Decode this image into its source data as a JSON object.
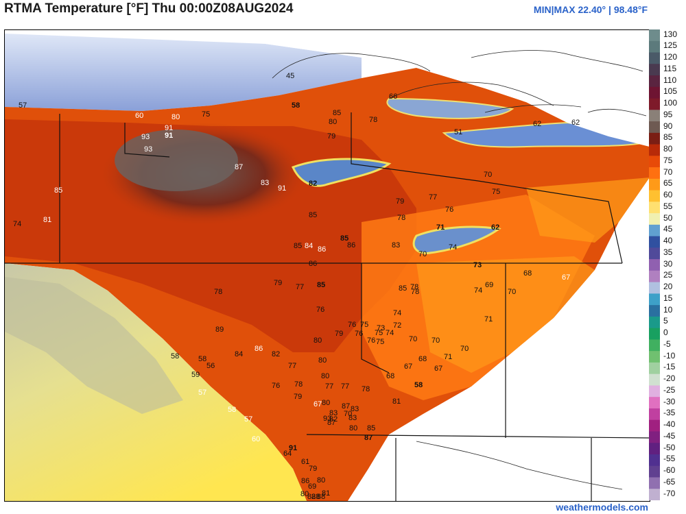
{
  "header": {
    "title": "RTMA Temperature [°F]  Thu 00:00Z08AUG2024",
    "minmax": "MIN|MAX 22.40° | 98.48°F"
  },
  "credit": "weathermodels.com",
  "colorbar": {
    "labels": [
      "130",
      "125",
      "120",
      "115",
      "110",
      "105",
      "100",
      "95",
      "90",
      "85",
      "80",
      "75",
      "70",
      "65",
      "60",
      "55",
      "50",
      "45",
      "40",
      "35",
      "30",
      "25",
      "20",
      "15",
      "10",
      "5",
      "0",
      "-5",
      "-10",
      "-15",
      "-20",
      "-25",
      "-30",
      "-35",
      "-40",
      "-45",
      "-50",
      "-55",
      "-60",
      "-65",
      "-70"
    ],
    "colors": [
      "#6e8c8c",
      "#5c7a7c",
      "#4a5a68",
      "#4a3a50",
      "#5a2440",
      "#6e1432",
      "#7e1a2a",
      "#8a8078",
      "#6e5a52",
      "#7a1e14",
      "#b82a08",
      "#e84a08",
      "#ff7010",
      "#ff9a18",
      "#ffc030",
      "#ffe070",
      "#f0f0b0",
      "#60a0d0",
      "#3050a0",
      "#504a9a",
      "#9060b0",
      "#b080c0",
      "#b0c0e0",
      "#3ea0c8",
      "#2a70a0",
      "#1a9a8a",
      "#18a060",
      "#40b060",
      "#70c070",
      "#a0d0a0",
      "#d0e0d0",
      "#e0b0e0",
      "#e070c0",
      "#c040a0",
      "#a02080",
      "#802080",
      "#602080",
      "#503090",
      "#604090",
      "#9070b0",
      "#c0b0d0"
    ]
  },
  "map": {
    "region": "Western Canada",
    "temperature_labels": [
      {
        "v": "45"
      },
      {
        "v": "57"
      },
      {
        "v": "66"
      },
      {
        "v": "51"
      },
      {
        "v": "62"
      },
      {
        "v": "62"
      },
      {
        "v": "60"
      },
      {
        "v": "80"
      },
      {
        "v": "75"
      },
      {
        "v": "58"
      },
      {
        "v": "85"
      },
      {
        "v": "78"
      },
      {
        "v": "80"
      },
      {
        "v": "79"
      },
      {
        "v": "91"
      },
      {
        "v": "91"
      },
      {
        "v": "93"
      },
      {
        "v": "93"
      },
      {
        "v": "87"
      },
      {
        "v": "83"
      },
      {
        "v": "91"
      },
      {
        "v": "82"
      },
      {
        "v": "70"
      },
      {
        "v": "75"
      },
      {
        "v": "79"
      },
      {
        "v": "77"
      },
      {
        "v": "76"
      },
      {
        "v": "78"
      },
      {
        "v": "71"
      },
      {
        "v": "62"
      },
      {
        "v": "74"
      },
      {
        "v": "70"
      },
      {
        "v": "85"
      },
      {
        "v": "74"
      },
      {
        "v": "81"
      },
      {
        "v": "85"
      },
      {
        "v": "85"
      },
      {
        "v": "86"
      },
      {
        "v": "83"
      },
      {
        "v": "85"
      },
      {
        "v": "84"
      },
      {
        "v": "86"
      },
      {
        "v": "86"
      },
      {
        "v": "73"
      },
      {
        "v": "68"
      },
      {
        "v": "67"
      },
      {
        "v": "69"
      },
      {
        "v": "74"
      },
      {
        "v": "70"
      },
      {
        "v": "85"
      },
      {
        "v": "78"
      },
      {
        "v": "79"
      },
      {
        "v": "77"
      },
      {
        "v": "85"
      },
      {
        "v": "78"
      },
      {
        "v": "78"
      },
      {
        "v": "76"
      },
      {
        "v": "74"
      },
      {
        "v": "71"
      },
      {
        "v": "76"
      },
      {
        "v": "75"
      },
      {
        "v": "73"
      },
      {
        "v": "72"
      },
      {
        "v": "79"
      },
      {
        "v": "76"
      },
      {
        "v": "75"
      },
      {
        "v": "74"
      },
      {
        "v": "76"
      },
      {
        "v": "75"
      },
      {
        "v": "80"
      },
      {
        "v": "70"
      },
      {
        "v": "70"
      },
      {
        "v": "70"
      },
      {
        "v": "71"
      },
      {
        "v": "68"
      },
      {
        "v": "67"
      },
      {
        "v": "67"
      },
      {
        "v": "68"
      },
      {
        "v": "58"
      },
      {
        "v": "89"
      },
      {
        "v": "86"
      },
      {
        "v": "84"
      },
      {
        "v": "82"
      },
      {
        "v": "77"
      },
      {
        "v": "80"
      },
      {
        "v": "80"
      },
      {
        "v": "77"
      },
      {
        "v": "77"
      },
      {
        "v": "78"
      },
      {
        "v": "78"
      },
      {
        "v": "79"
      },
      {
        "v": "76"
      },
      {
        "v": "58"
      },
      {
        "v": "58"
      },
      {
        "v": "56"
      },
      {
        "v": "59"
      },
      {
        "v": "57"
      },
      {
        "v": "58"
      },
      {
        "v": "57"
      },
      {
        "v": "60"
      },
      {
        "v": "67"
      },
      {
        "v": "80"
      },
      {
        "v": "83"
      },
      {
        "v": "82"
      },
      {
        "v": "93"
      },
      {
        "v": "87"
      },
      {
        "v": "87"
      },
      {
        "v": "83"
      },
      {
        "v": "81"
      },
      {
        "v": "70"
      },
      {
        "v": "83"
      },
      {
        "v": "80"
      },
      {
        "v": "85"
      },
      {
        "v": "87"
      },
      {
        "v": "91"
      },
      {
        "v": "64"
      },
      {
        "v": "61"
      },
      {
        "v": "79"
      },
      {
        "v": "80"
      },
      {
        "v": "81"
      },
      {
        "v": "80"
      },
      {
        "v": "82"
      },
      {
        "v": "88"
      },
      {
        "v": "88"
      },
      {
        "v": "86"
      },
      {
        "v": "69"
      },
      {
        "v": "65"
      }
    ]
  }
}
